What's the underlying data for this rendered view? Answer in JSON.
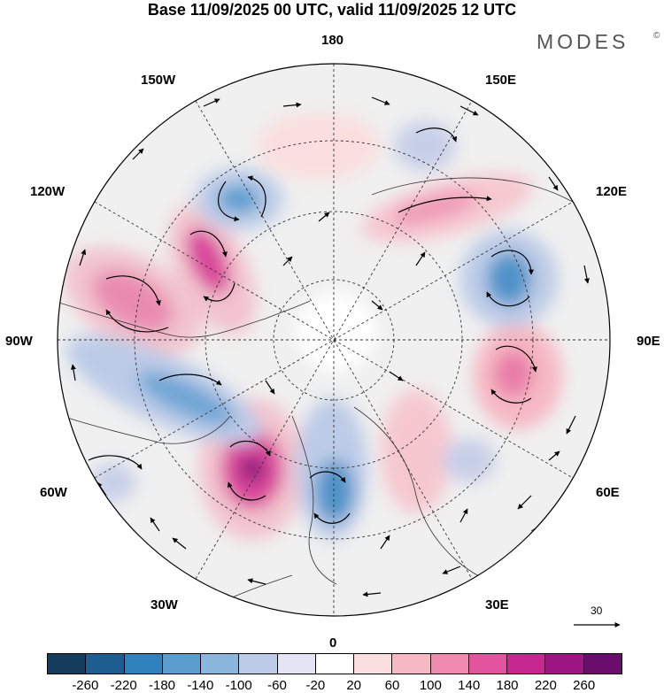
{
  "title": "Base 11/09/2025 00 UTC, valid 11/09/2025 12 UTC",
  "brand": "MODES",
  "brand_mark": "©",
  "longitude_labels": {
    "top": "180",
    "bottom": "0",
    "left": "90W",
    "right": "90E",
    "upper_left_outer": "150W",
    "upper_left_inner": "120W",
    "lower_left_inner": "60W",
    "lower_left_outer": "30W",
    "upper_right_outer": "150E",
    "upper_right_inner": "120E",
    "lower_right_inner": "60E",
    "lower_right_outer": "30E"
  },
  "reference_vector": "30",
  "colorbar": {
    "colors": [
      "#173d5d",
      "#1d5d8f",
      "#2f82bd",
      "#5a9ed0",
      "#8bb6de",
      "#bccbe7",
      "#e4e4f2",
      "#ffffff",
      "#fbdede",
      "#f6b8c3",
      "#f08aae",
      "#e3549e",
      "#c72790",
      "#9e1682",
      "#6a0d6d"
    ],
    "ticks": [
      "-260",
      "-220",
      "-180",
      "-140",
      "-100",
      "-60",
      "-20",
      "20",
      "60",
      "100",
      "140",
      "180",
      "220",
      "260"
    ]
  }
}
